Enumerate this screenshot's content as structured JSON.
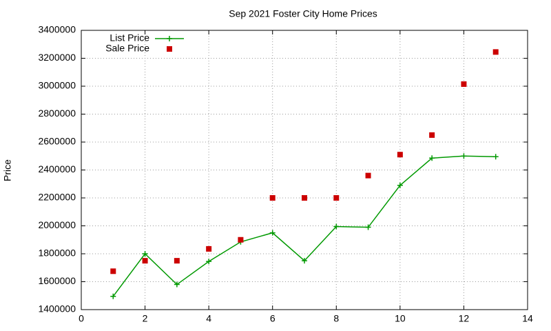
{
  "chart_data": {
    "type": "line",
    "title": "Sep 2021 Foster City Home Prices",
    "y_label": "Price",
    "x": [
      1,
      2,
      3,
      4,
      5,
      6,
      7,
      8,
      9,
      10,
      11,
      12,
      13
    ],
    "series": [
      {
        "name": "List Price",
        "color": "#009900",
        "style": "linespoints",
        "values": [
          1495000,
          1800000,
          1580000,
          1745000,
          1885000,
          1950000,
          1750000,
          1995000,
          1990000,
          2290000,
          2485000,
          2500000,
          2495000
        ]
      },
      {
        "name": "Sale Price",
        "color": "#cc0000",
        "style": "points",
        "values": [
          1675000,
          1750000,
          1750000,
          1835000,
          1900000,
          2200000,
          2200000,
          2200000,
          2360000,
          2510000,
          2650000,
          3015000,
          3245000
        ]
      }
    ],
    "xlim": [
      0,
      14
    ],
    "xticks": [
      0,
      2,
      4,
      6,
      8,
      10,
      12,
      14
    ],
    "ylim": [
      1400000,
      3400000
    ],
    "yticks": [
      1400000,
      1600000,
      1800000,
      2000000,
      2200000,
      2400000,
      2600000,
      2800000,
      3000000,
      3200000,
      3400000
    ],
    "grid": true,
    "legend": "top-left"
  }
}
